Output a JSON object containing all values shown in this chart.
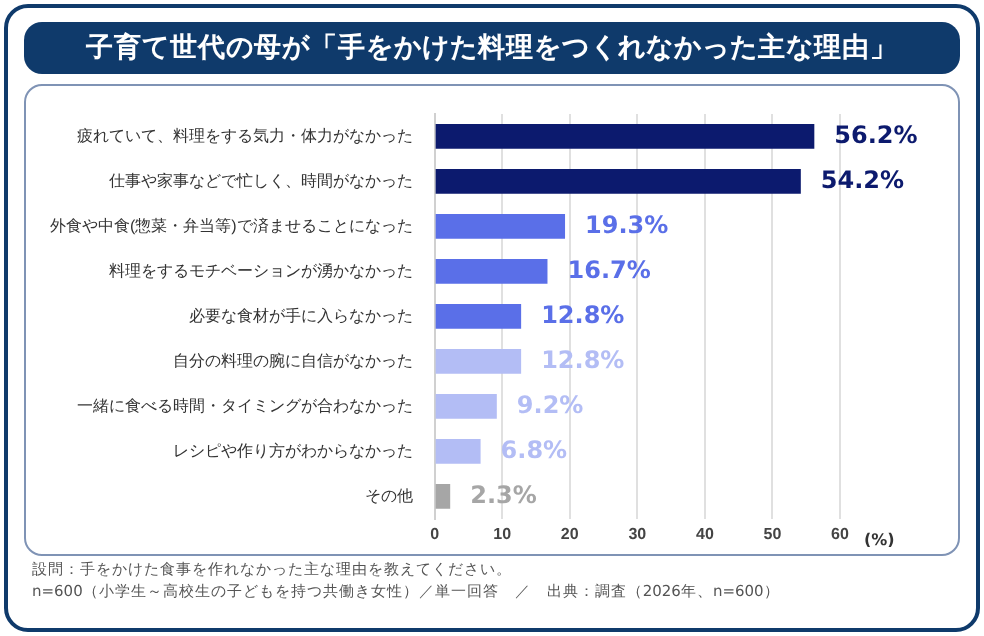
{
  "chart_data": {
    "type": "bar",
    "orientation": "horizontal",
    "title": "子育て世代の母が「手をかけた料理をつくれなかった主な理由」",
    "categories": [
      "疲れていて、料理をする気力・体力がなかった",
      "仕事や家事などで忙しく、時間がなかった",
      "外食や中食(惣菜・弁当等)で済ませることになった",
      "料理をするモチベーションが湧かなかった",
      "必要な食材が手に入らなかった",
      "自分の料理の腕に自信がなかった",
      "一緒に食べる時間・タイミングが合わなかった",
      "レシピや作り方がわからなかった",
      "その他"
    ],
    "values": [
      56.2,
      54.2,
      19.3,
      16.7,
      12.8,
      12.8,
      9.2,
      6.8,
      2.3
    ],
    "colors": [
      "#0c1a6e",
      "#0c1a6e",
      "#5a6fe8",
      "#5a6fe8",
      "#5a6fe8",
      "#b3bdf5",
      "#b3bdf5",
      "#b3bdf5",
      "#a6a6a6"
    ],
    "value_labels": [
      "56.2%",
      "54.2%",
      "19.3%",
      "16.7%",
      "12.8%",
      "12.8%",
      "9.2%",
      "6.8%",
      "2.3%"
    ],
    "xlabel": "(%)",
    "xlim": [
      0,
      60
    ],
    "xticks": [
      0,
      10,
      20,
      30,
      40,
      50,
      60
    ],
    "grid": "x",
    "legend": false,
    "annotations": [
      "設問：手をかけた食事を作れなかった主な理由を教えてください。",
      "n=600（小学生～高校生の子どもを持つ共働き女性）／単一回答　／　出典：調査（2026年、n=600）"
    ]
  }
}
